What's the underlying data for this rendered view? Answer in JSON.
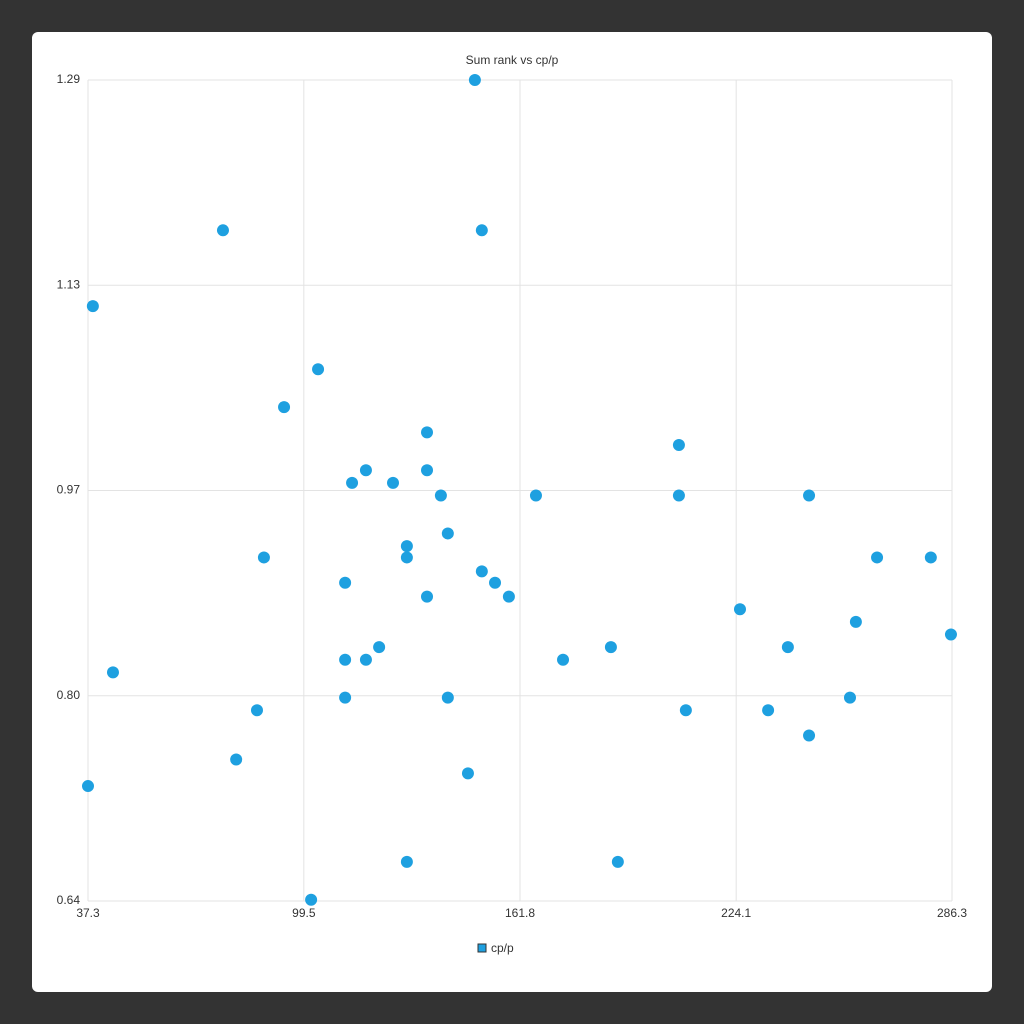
{
  "chart_data": {
    "type": "scatter",
    "title": "Sum rank vs cp/p",
    "x": [
      148.8,
      76.2,
      150.8,
      38.7,
      103.6,
      93.8,
      135.0,
      207.6,
      117.4,
      135.0,
      113.4,
      125.2,
      139.0,
      166.4,
      207.6,
      245.1,
      141.0,
      129.2,
      88.0,
      129.2,
      264.7,
      280.2,
      150.8,
      154.6,
      111.4,
      135.0,
      158.6,
      225.2,
      258.6,
      286.0,
      121.2,
      188.0,
      239.0,
      111.4,
      117.4,
      174.2,
      44.5,
      111.4,
      141.0,
      256.9,
      86.0,
      209.6,
      233.3,
      245.1,
      80.0,
      37.3,
      146.8,
      129.2,
      190.0,
      101.6
    ],
    "series": [
      {
        "name": "cp/p",
        "color": "#1ea0e0",
        "values": [
          1.29,
          1.171,
          1.171,
          1.111,
          1.061,
          1.031,
          1.011,
          1.001,
          0.981,
          0.981,
          0.971,
          0.971,
          0.961,
          0.961,
          0.961,
          0.961,
          0.931,
          0.921,
          0.912,
          0.912,
          0.912,
          0.912,
          0.901,
          0.892,
          0.892,
          0.881,
          0.881,
          0.871,
          0.861,
          0.851,
          0.841,
          0.841,
          0.841,
          0.831,
          0.831,
          0.831,
          0.821,
          0.801,
          0.801,
          0.801,
          0.791,
          0.791,
          0.791,
          0.771,
          0.752,
          0.731,
          0.741,
          0.671,
          0.671,
          0.641
        ]
      }
    ],
    "xlim": [
      37.3,
      286.3
    ],
    "xticks": [
      37.3,
      99.5,
      161.8,
      224.1,
      286.3
    ],
    "ylim": [
      0.64,
      1.29
    ],
    "yticks": [
      0.64,
      {
        "value": 0.8025,
        "label": "0.80"
      },
      {
        "value": 0.965,
        "label": "0.97"
      },
      {
        "value": 1.1275,
        "label": "1.13"
      },
      1.29
    ],
    "grid": true,
    "legend": "bottom"
  }
}
